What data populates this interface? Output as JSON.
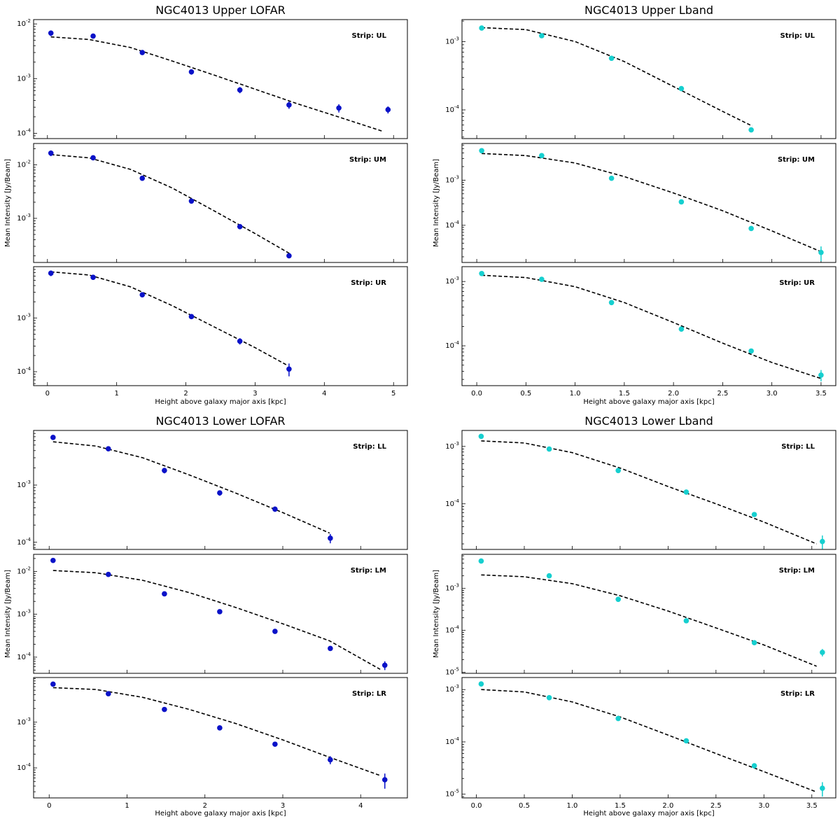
{
  "figure": {
    "colors": {
      "lofar_points": "#0a12c8",
      "lband_points": "#16cfcf",
      "model_line": "#000000"
    },
    "xlabel": "Height above galaxy major axis [kpc]",
    "ylabel": "Mean Intensity [Jy/Beam]"
  },
  "chart_data": [
    {
      "type": "scatter",
      "title": "NGC4013 Upper LOFAR",
      "xlabel": "Height above galaxy major axis [kpc]",
      "ylabel": "Mean Intensity [Jy/Beam]",
      "xlim": [
        -0.2,
        5.2
      ],
      "xticks": [
        0,
        1,
        2,
        3,
        4,
        5
      ],
      "panels": [
        {
          "strip": "Strip: UL",
          "ylim": [
            8e-05,
            0.012
          ],
          "yscale": "log",
          "points": [
            [
              0.05,
              0.0068,
              0.0008
            ],
            [
              0.66,
              0.006,
              0.0005
            ],
            [
              1.37,
              0.003,
              0.0002
            ],
            [
              2.08,
              0.00133,
              0.00015
            ],
            [
              2.78,
              0.00062,
              8e-05
            ],
            [
              3.49,
              0.00033,
              5e-05
            ],
            [
              4.21,
              0.00029,
              5e-05
            ],
            [
              4.92,
              0.00027,
              4e-05
            ]
          ],
          "model": [
            [
              0.05,
              0.0058
            ],
            [
              0.6,
              0.0052
            ],
            [
              1.2,
              0.0037
            ],
            [
              1.8,
              0.0021
            ],
            [
              2.4,
              0.00117
            ],
            [
              3.0,
              0.00064
            ],
            [
              3.6,
              0.00035
            ],
            [
              4.2,
              0.0002
            ],
            [
              4.85,
              0.000108
            ]
          ]
        },
        {
          "strip": "Strip: UM",
          "ylim": [
            0.00015,
            0.025
          ],
          "yscale": "log",
          "points": [
            [
              0.05,
              0.0165,
              0.002
            ],
            [
              0.66,
              0.0135,
              0.001
            ],
            [
              1.37,
              0.0056,
              0.0004
            ],
            [
              2.08,
              0.0021,
              0.0001
            ],
            [
              2.78,
              0.0007,
              5e-05
            ],
            [
              3.49,
              0.0002,
              2e-05
            ]
          ],
          "model": [
            [
              0.05,
              0.0155
            ],
            [
              0.6,
              0.0135
            ],
            [
              1.2,
              0.0082
            ],
            [
              1.8,
              0.0037
            ],
            [
              2.4,
              0.0014
            ],
            [
              3.0,
              0.00052
            ],
            [
              3.5,
              0.00022
            ]
          ]
        },
        {
          "strip": "Strip: UR",
          "ylim": [
            5.5e-05,
            0.009
          ],
          "yscale": "log",
          "points": [
            [
              0.05,
              0.0068,
              0.0008
            ],
            [
              0.66,
              0.0057,
              0.0006
            ],
            [
              1.37,
              0.0027,
              0.0002
            ],
            [
              2.08,
              0.00106,
              0.0001
            ],
            [
              2.78,
              0.00037,
              5e-05
            ],
            [
              3.49,
              0.000112,
              3e-05
            ]
          ],
          "model": [
            [
              0.05,
              0.0072
            ],
            [
              0.6,
              0.0063
            ],
            [
              1.2,
              0.0038
            ],
            [
              1.8,
              0.0017
            ],
            [
              2.4,
              0.00069
            ],
            [
              3.0,
              0.00028
            ],
            [
              3.45,
              0.000135
            ]
          ]
        }
      ]
    },
    {
      "type": "scatter",
      "title": "NGC4013 Upper Lband",
      "xlabel": "Height above galaxy major axis [kpc]",
      "ylabel": "Mean Intensity [Jy/Beam]",
      "xlim": [
        -0.15,
        3.65
      ],
      "xticks": [
        0.0,
        0.5,
        1.0,
        1.5,
        2.0,
        2.5,
        3.0,
        3.5
      ],
      "panels": [
        {
          "strip": "Strip: UL",
          "ylim": [
            3.8e-05,
            0.0021
          ],
          "yscale": "log",
          "points": [
            [
              0.05,
              0.00158,
              6e-05
            ],
            [
              0.66,
              0.00122,
              4e-05
            ],
            [
              1.37,
              0.00057,
              3e-05
            ],
            [
              2.08,
              0.000205,
              1e-05
            ],
            [
              2.79,
              5.1e-05,
              3e-06
            ]
          ],
          "model": [
            [
              0.05,
              0.0016
            ],
            [
              0.5,
              0.0015
            ],
            [
              1.0,
              0.001
            ],
            [
              1.5,
              0.00051
            ],
            [
              2.0,
              0.00022
            ],
            [
              2.5,
              9.5e-05
            ],
            [
              2.8,
              5.8e-05
            ]
          ]
        },
        {
          "strip": "Strip: UM",
          "ylim": [
            1.5e-05,
            0.0065
          ],
          "yscale": "log",
          "points": [
            [
              0.05,
              0.0045,
              0.0003
            ],
            [
              0.66,
              0.0035,
              0.0002
            ],
            [
              1.37,
              0.0011,
              5e-05
            ],
            [
              2.08,
              0.00033,
              2e-05
            ],
            [
              2.79,
              8.5e-05,
              5e-06
            ],
            [
              3.5,
              2.5e-05,
              9e-06
            ]
          ],
          "model": [
            [
              0.05,
              0.0039
            ],
            [
              0.5,
              0.0035
            ],
            [
              1.0,
              0.0024
            ],
            [
              1.5,
              0.0012
            ],
            [
              2.0,
              0.00052
            ],
            [
              2.5,
              0.00021
            ],
            [
              3.0,
              7.5e-05
            ],
            [
              3.5,
              2.6e-05
            ]
          ]
        },
        {
          "strip": "Strip: UR",
          "ylim": [
            2.4e-05,
            0.0017
          ],
          "yscale": "log",
          "points": [
            [
              0.05,
              0.00133,
              7e-05
            ],
            [
              0.66,
              0.00108,
              5e-05
            ],
            [
              1.37,
              0.00047,
              3e-05
            ],
            [
              2.08,
              0.000182,
              1.5e-05
            ],
            [
              2.79,
              8.3e-05,
              6e-06
            ],
            [
              3.5,
              3.5e-05,
              7e-06
            ]
          ],
          "model": [
            [
              0.05,
              0.00125
            ],
            [
              0.5,
              0.00115
            ],
            [
              1.0,
              0.00083
            ],
            [
              1.5,
              0.00047
            ],
            [
              2.0,
              0.00023
            ],
            [
              2.5,
              0.00011
            ],
            [
              3.0,
              5.5e-05
            ],
            [
              3.5,
              3.1e-05
            ]
          ]
        }
      ]
    },
    {
      "type": "scatter",
      "title": "NGC4013 Lower LOFAR",
      "xlabel": "Height above galaxy major axis [kpc]",
      "ylabel": "Mean Intensity [Jy/Beam]",
      "xlim": [
        -0.2,
        4.6
      ],
      "xticks": [
        0,
        1,
        2,
        3,
        4
      ],
      "panels": [
        {
          "strip": "Strip: LL",
          "ylim": [
            7.5e-05,
            0.009
          ],
          "yscale": "log",
          "points": [
            [
              0.05,
              0.0068,
              0.0006
            ],
            [
              0.76,
              0.0043,
              0.0003
            ],
            [
              1.48,
              0.0018,
              0.0002
            ],
            [
              2.19,
              0.00073,
              8e-05
            ],
            [
              2.9,
              0.00038,
              4e-05
            ],
            [
              3.61,
              0.000118,
              2.2e-05
            ]
          ],
          "model": [
            [
              0.05,
              0.0057
            ],
            [
              0.6,
              0.0048
            ],
            [
              1.2,
              0.003
            ],
            [
              1.8,
              0.0015
            ],
            [
              2.4,
              0.00072
            ],
            [
              3.0,
              0.00033
            ],
            [
              3.6,
              0.000145
            ]
          ]
        },
        {
          "strip": "Strip: LM",
          "ylim": [
            4.2e-05,
            0.025
          ],
          "yscale": "log",
          "points": [
            [
              0.05,
              0.018,
              0.0015
            ],
            [
              0.76,
              0.0085,
              0.0007
            ],
            [
              1.48,
              0.003,
              0.0002
            ],
            [
              2.19,
              0.00115,
              7e-05
            ],
            [
              2.9,
              0.0004,
              2e-05
            ],
            [
              3.61,
              0.00016,
              2e-05
            ],
            [
              4.31,
              6.5e-05,
              1.5e-05
            ]
          ],
          "model": [
            [
              0.05,
              0.0105
            ],
            [
              0.6,
              0.0093
            ],
            [
              1.2,
              0.0062
            ],
            [
              1.8,
              0.0032
            ],
            [
              2.4,
              0.00143
            ],
            [
              3.0,
              0.0006
            ],
            [
              3.6,
              0.00024
            ],
            [
              4.25,
              5.2e-05
            ]
          ]
        },
        {
          "strip": "Strip: LR",
          "ylim": [
            2.2e-05,
            0.0095
          ],
          "yscale": "log",
          "points": [
            [
              0.05,
              0.0068,
              0.0005
            ],
            [
              0.76,
              0.0042,
              0.0003
            ],
            [
              1.48,
              0.0019,
              0.00012
            ],
            [
              2.19,
              0.00075,
              5e-05
            ],
            [
              2.9,
              0.00033,
              2e-05
            ],
            [
              3.61,
              0.00015,
              3e-05
            ],
            [
              4.31,
              5.5e-05,
              2e-05
            ]
          ],
          "model": [
            [
              0.05,
              0.0057
            ],
            [
              0.6,
              0.0052
            ],
            [
              1.2,
              0.0035
            ],
            [
              1.8,
              0.0019
            ],
            [
              2.4,
              0.00093
            ],
            [
              3.0,
              0.00041
            ],
            [
              3.6,
              0.00017
            ],
            [
              4.25,
              6.8e-05
            ]
          ]
        }
      ]
    },
    {
      "type": "scatter",
      "title": "NGC4013 Lower Lband",
      "xlabel": "Height above galaxy major axis [kpc]",
      "ylabel": "Mean Intensity [Jy/Beam]",
      "xlim": [
        -0.15,
        3.75
      ],
      "xticks": [
        0.0,
        0.5,
        1.0,
        1.5,
        2.0,
        2.5,
        3.0,
        3.5
      ],
      "panels": [
        {
          "strip": "Strip: LL",
          "ylim": [
            1.6e-05,
            0.0019
          ],
          "yscale": "log",
          "points": [
            [
              0.05,
              0.0015,
              5e-05
            ],
            [
              0.76,
              0.0009,
              4e-05
            ],
            [
              1.48,
              0.00038,
              2e-05
            ],
            [
              2.19,
              0.00016,
              8e-06
            ],
            [
              2.9,
              6.5e-05,
              5e-06
            ],
            [
              3.61,
              2.2e-05,
              6e-06
            ]
          ],
          "model": [
            [
              0.05,
              0.00125
            ],
            [
              0.5,
              0.00115
            ],
            [
              1.0,
              0.00078
            ],
            [
              1.5,
              0.00042
            ],
            [
              2.0,
              0.0002
            ],
            [
              2.5,
              0.0001
            ],
            [
              3.0,
              4.8e-05
            ],
            [
              3.55,
              2e-05
            ]
          ]
        },
        {
          "strip": "Strip: LM",
          "ylim": [
            9.5e-06,
            0.0065
          ],
          "yscale": "log",
          "points": [
            [
              0.05,
              0.0045,
              0.0002
            ],
            [
              0.76,
              0.002,
              0.0001
            ],
            [
              1.48,
              0.00055,
              3e-05
            ],
            [
              2.19,
              0.00017,
              1e-05
            ],
            [
              2.9,
              5.1e-05,
              4e-06
            ],
            [
              3.61,
              3e-05,
              6e-06
            ]
          ],
          "model": [
            [
              0.05,
              0.0021
            ],
            [
              0.5,
              0.0019
            ],
            [
              1.0,
              0.0013
            ],
            [
              1.5,
              0.00067
            ],
            [
              2.0,
              0.00029
            ],
            [
              2.5,
              0.000115
            ],
            [
              3.0,
              4.5e-05
            ],
            [
              3.55,
              1.4e-05
            ]
          ]
        },
        {
          "strip": "Strip: LR",
          "ylim": [
            8.5e-06,
            0.0017
          ],
          "yscale": "log",
          "points": [
            [
              0.05,
              0.00128,
              5e-05
            ],
            [
              0.76,
              0.0007,
              4e-05
            ],
            [
              1.48,
              0.00028,
              2e-05
            ],
            [
              2.19,
              0.000105,
              6e-06
            ],
            [
              2.9,
              3.5e-05,
              2e-06
            ],
            [
              3.61,
              1.3e-05,
              4e-06
            ]
          ],
          "model": [
            [
              0.05,
              0.001
            ],
            [
              0.5,
              0.0009
            ],
            [
              1.0,
              0.00058
            ],
            [
              1.5,
              0.0003
            ],
            [
              2.0,
              0.000135
            ],
            [
              2.5,
              6e-05
            ],
            [
              3.0,
              2.7e-05
            ],
            [
              3.55,
              1.1e-05
            ]
          ]
        }
      ]
    }
  ]
}
